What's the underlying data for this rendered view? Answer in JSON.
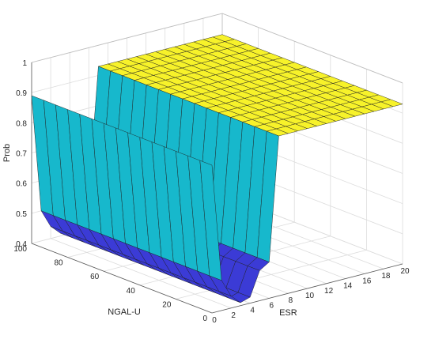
{
  "chart_data": {
    "type": "surface3d",
    "title": "",
    "xlabel": "ESR",
    "ylabel": "NGAL-U",
    "zlabel": "Prob",
    "xlim": [
      0,
      20
    ],
    "ylim": [
      0,
      100
    ],
    "zlim": [
      0.4,
      1.0
    ],
    "x_ticks": [
      0,
      2,
      4,
      6,
      8,
      10,
      12,
      14,
      16,
      18,
      20
    ],
    "y_ticks": [
      0,
      20,
      40,
      60,
      80,
      100
    ],
    "z_ticks": [
      0.4,
      0.5,
      0.6,
      0.7,
      0.8,
      0.9,
      1
    ],
    "grid": true,
    "colormap": [
      "#3b3bd6",
      "#17b8cc",
      "#f7f22a"
    ],
    "surface_x_profile": {
      "x": [
        0,
        1,
        2,
        3,
        4,
        5,
        6,
        7,
        8,
        9,
        10,
        11,
        12,
        13,
        14,
        15,
        16,
        17,
        18,
        19,
        20
      ],
      "z": [
        0.89,
        0.5,
        0.44,
        0.41,
        0.42,
        0.5,
        0.52,
        0.93,
        0.93,
        0.93,
        0.93,
        0.93,
        0.93,
        0.93,
        0.93,
        0.93,
        0.93,
        0.93,
        0.93,
        0.93,
        0.93
      ]
    },
    "y_grid_lines": 15,
    "surface_constant_along_y": true
  }
}
